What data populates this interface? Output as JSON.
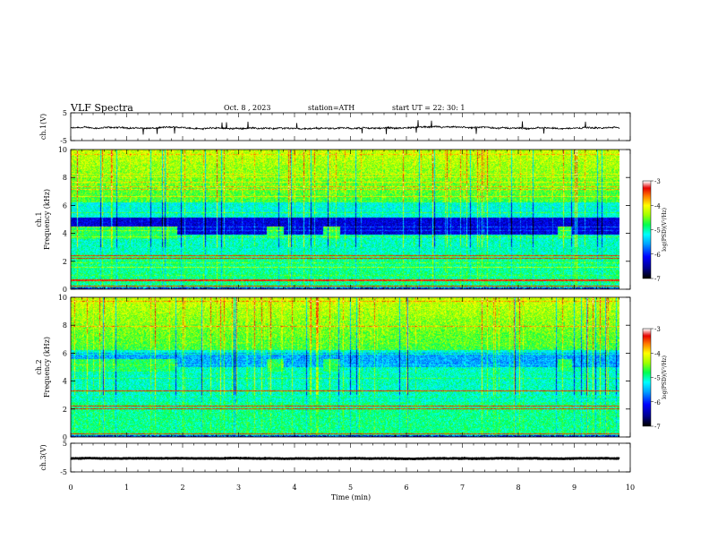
{
  "header": {
    "title": "VLF  Spectra",
    "date": "Oct. 8  , 2023",
    "station": "station=ATH",
    "start": "start  UT  =    22: 30: 1"
  },
  "chart_data": [
    {
      "type": "line",
      "id": "ch1-waveform",
      "ylabel": "ch.1(V)",
      "yticks": [
        "5",
        "-5"
      ],
      "ylim": [
        -5,
        5
      ],
      "xlim": [
        0,
        10
      ],
      "x_units": "min",
      "baseline": -0.5,
      "noise_amp": 0.5,
      "data_end_min": 9.8
    },
    {
      "type": "heatmap",
      "id": "ch1-spectrogram",
      "ylabel": "ch.1\nFrequency  (kHz)",
      "ylabel_lines": [
        "ch.1",
        "Frequency  (kHz)"
      ],
      "yticks": [
        "10",
        "8",
        "6",
        "4",
        "2",
        "0"
      ],
      "ylim": [
        0,
        10
      ],
      "xlim": [
        0,
        10
      ],
      "data_end_min": 9.8,
      "colorbar": {
        "label": "log(PSD)(V²/Hz)",
        "ticks": [
          "-3",
          "-4",
          "-5",
          "-6",
          "-7"
        ],
        "range": [
          -7,
          -3
        ]
      },
      "features": {
        "quiet_band_khz": [
          3.9,
          5.1
        ],
        "green_patches_min": [
          [
            0.0,
            1.9
          ],
          [
            3.5,
            3.8
          ],
          [
            4.5,
            4.8
          ],
          [
            8.7,
            8.95
          ]
        ],
        "red_lines_khz": [
          2.2,
          2.4,
          0.6,
          0.2
        ]
      }
    },
    {
      "type": "heatmap",
      "id": "ch2-spectrogram",
      "ylabel": "ch.2\nFrequency  (kHz)",
      "ylabel_lines": [
        "ch.2",
        "Frequency  (kHz)"
      ],
      "yticks": [
        "10",
        "8",
        "6",
        "4",
        "2",
        "0"
      ],
      "ylim": [
        0,
        10
      ],
      "xlim": [
        0,
        10
      ],
      "data_end_min": 9.8,
      "colorbar": {
        "label": "log(PSD)(V²/Hz)",
        "ticks": [
          "-3",
          "-4",
          "-5",
          "-6",
          "-7"
        ],
        "range": [
          -7,
          -3
        ]
      },
      "features": {
        "quiet_band_khz": [
          5.0,
          6.0
        ],
        "green_patches_min": [
          [
            0.0,
            1.9
          ],
          [
            3.5,
            3.8
          ],
          [
            4.5,
            4.8
          ],
          [
            8.7,
            8.95
          ]
        ],
        "red_lines_khz": [
          3.3,
          2.2,
          2.0,
          0.2
        ]
      }
    },
    {
      "type": "line",
      "id": "ch3-waveform",
      "ylabel": "ch.3(V)",
      "yticks": [
        "5",
        "-5"
      ],
      "ylim": [
        -5,
        5
      ],
      "xlim": [
        0,
        10
      ],
      "x_units": "min",
      "baseline": -0.3,
      "noise_amp": 0.15,
      "data_end_min": 9.8
    }
  ],
  "xaxis": {
    "label": "Time  (min)",
    "ticks": [
      "0",
      "1",
      "2",
      "3",
      "4",
      "5",
      "6",
      "7",
      "8",
      "9",
      "10"
    ]
  }
}
